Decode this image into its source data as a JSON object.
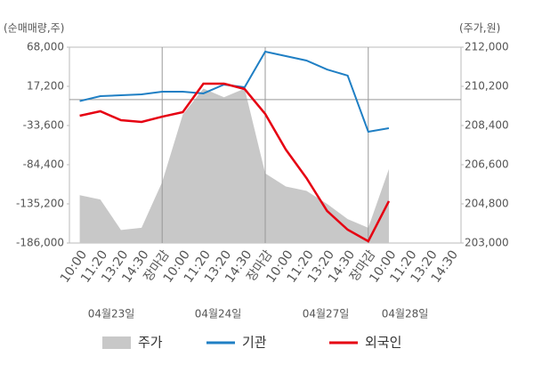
{
  "chart_data": {
    "type": "line",
    "y_title": "(순매매량,주)",
    "y2_title": "(주가,원)",
    "categories": [
      "10:00",
      "11:20",
      "13:20",
      "14:30",
      "장마감",
      "10:00",
      "11:20",
      "13:20",
      "14:30",
      "장마감",
      "10:00",
      "11:20",
      "13:20",
      "14:30",
      "장마감",
      "10:00",
      "11:20",
      "13:20",
      "14:30"
    ],
    "category_colors": [
      "#333",
      "#333",
      "#333",
      "#333",
      "#e60012",
      "#333",
      "#333",
      "#333",
      "#333",
      "#e60012",
      "#333",
      "#333",
      "#333",
      "#333",
      "#e60012",
      "#333",
      "#333",
      "#333",
      "#333"
    ],
    "dates": [
      "04월23일",
      "04월24일",
      "04월27일",
      "04월28일"
    ],
    "ylim": [
      -186000,
      68000
    ],
    "yticks": [
      {
        "value": 68000,
        "label": "68,000"
      },
      {
        "value": 17200,
        "label": "17,200"
      },
      {
        "value": -33600,
        "label": "-33,600"
      },
      {
        "value": -84400,
        "label": "-84,400"
      },
      {
        "value": -135200,
        "label": "-135,200"
      },
      {
        "value": -186000,
        "label": "-186,000"
      }
    ],
    "y2lim": [
      203000,
      212000
    ],
    "y2ticks": [
      {
        "value": 212000,
        "label": "212,000"
      },
      {
        "value": 210200,
        "label": "210,200"
      },
      {
        "value": 208400,
        "label": "208,400"
      },
      {
        "value": 206600,
        "label": "206,600"
      },
      {
        "value": 204800,
        "label": "204,800"
      },
      {
        "value": 203000,
        "label": "203,000"
      }
    ],
    "series": [
      {
        "name": "주가",
        "type": "area",
        "axis": "y2",
        "color": "#c8c8c8",
        "values": [
          205200,
          205000,
          203600,
          203700,
          205800,
          208900,
          210100,
          209700,
          210100,
          206200,
          205600,
          205400,
          204800,
          204100,
          203700,
          206400,
          null,
          null,
          null
        ]
      },
      {
        "name": "기관",
        "type": "line",
        "color": "#1f7fc4",
        "values": [
          -1900,
          4500,
          5650,
          6800,
          10300,
          10300,
          8000,
          19500,
          16000,
          62200,
          56500,
          50700,
          39100,
          31100,
          -41700,
          -37100,
          null,
          null,
          null
        ]
      },
      {
        "name": "외국인",
        "type": "line",
        "color": "#e60012",
        "values": [
          -20900,
          -15100,
          -26700,
          -29000,
          -22100,
          -16300,
          20700,
          20700,
          13700,
          -18600,
          -64800,
          -101700,
          -144400,
          -168700,
          -183700,
          -131700,
          null,
          null,
          null
        ]
      }
    ]
  }
}
